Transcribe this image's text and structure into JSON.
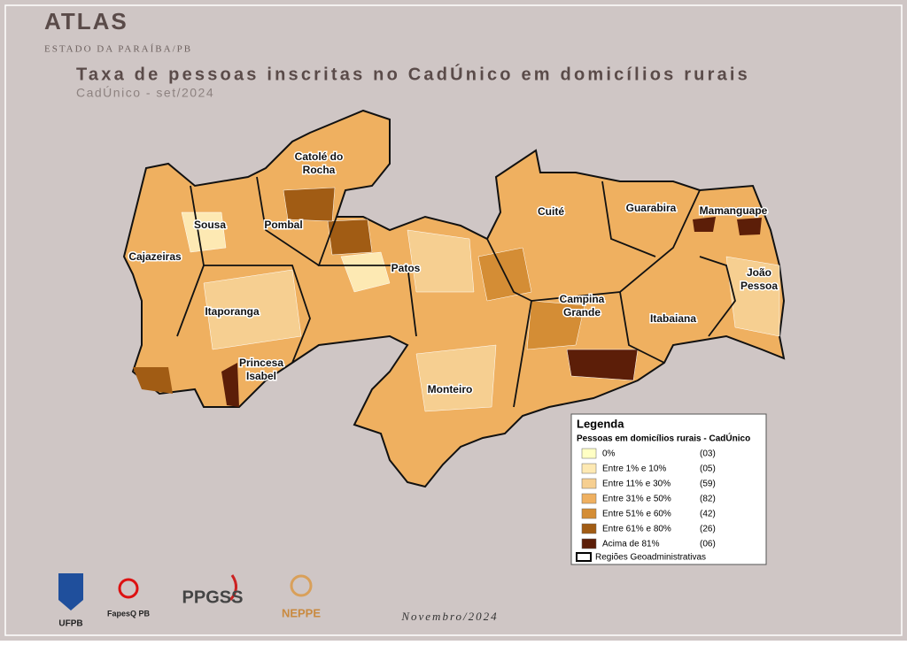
{
  "header": {
    "title": "ATLAS",
    "subtitle": "ESTADO DA PARAÍBA/PB"
  },
  "map": {
    "title": "Taxa de pessoas inscritas no CadÚnico em domicílios rurais",
    "subtitle": "CadÚnico - set/2024",
    "regions": [
      "Catolé do Rocha",
      "Sousa",
      "Pombal",
      "Cajazeiras",
      "Patos",
      "Itaporanga",
      "Princesa Isabel",
      "Monteiro",
      "Cuité",
      "Guarabira",
      "Mamanguape",
      "João Pessoa",
      "Campina Grande",
      "Itabaiana"
    ]
  },
  "legend": {
    "title": "Legenda",
    "subtitle": "Pessoas em domicílios rurais - CadÚnico",
    "items": [
      {
        "label": "0%",
        "count": "(03)",
        "color": "#ffffc4"
      },
      {
        "label": "Entre 1% e 10%",
        "count": "(05)",
        "color": "#fde9b3"
      },
      {
        "label": "Entre 11% e 30%",
        "count": "(59)",
        "color": "#f6cf91"
      },
      {
        "label": "Entre 31% e 50%",
        "count": "(82)",
        "color": "#efb060"
      },
      {
        "label": "Entre 51% e 60%",
        "count": "(42)",
        "color": "#d48d35"
      },
      {
        "label": "Entre 61% e 80%",
        "count": "(26)",
        "color": "#a15c14"
      },
      {
        "label": "Acima de 81%",
        "count": "(06)",
        "color": "#5c1e08"
      }
    ],
    "boundary": "Regiões Geoadministrativas"
  },
  "logos": [
    "UFPB",
    "FapesQ PB",
    "PPGSS",
    "NEPPE"
  ],
  "footer": {
    "date": "Novembro/2024"
  }
}
